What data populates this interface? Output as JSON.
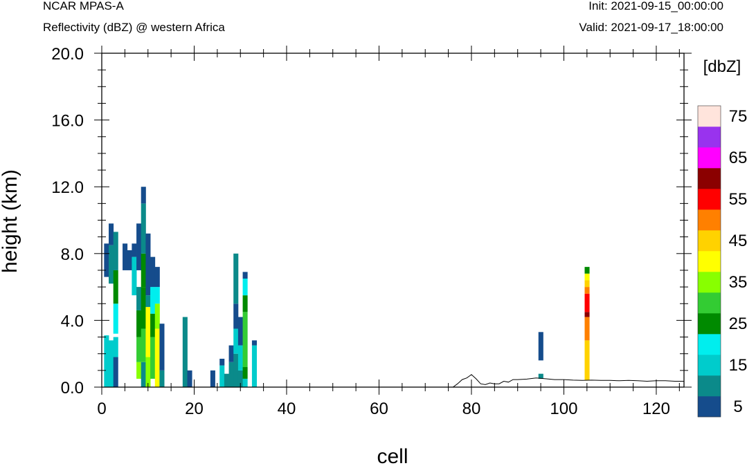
{
  "header": {
    "model": "NCAR MPAS-A",
    "subtitle": "Reflectivity (dBZ) @ western Africa",
    "init": "Init: 2021-09-15_00:00:00",
    "valid": "Valid: 2021-09-17_18:00:00"
  },
  "chart_data": {
    "type": "heatmap",
    "title": "Reflectivity (dBZ) @ western Africa",
    "xlabel": "cell",
    "ylabel": "height (km)",
    "xlim": [
      0,
      126
    ],
    "ylim": [
      0,
      20
    ],
    "x_ticks": [
      0,
      20,
      40,
      60,
      80,
      100,
      120
    ],
    "x_tick_labels": [
      "0",
      "20",
      "40",
      "60",
      "80",
      "100",
      "120"
    ],
    "y_ticks": [
      0,
      4,
      8,
      12,
      16,
      20
    ],
    "y_tick_labels": [
      "0.0",
      "4.0",
      "8.0",
      "12.0",
      "16.0",
      "20.0"
    ],
    "colorbar": {
      "unit_label": "[dbZ]",
      "levels": [
        5,
        10,
        15,
        20,
        25,
        30,
        35,
        40,
        45,
        50,
        55,
        60,
        65,
        70,
        75
      ],
      "labels": [
        "5",
        "15",
        "25",
        "35",
        "45",
        "55",
        "65",
        "75"
      ],
      "colors": [
        "#154c8c",
        "#0b8a8a",
        "#00cccc",
        "#00eeee",
        "#008a00",
        "#33cc33",
        "#88ff00",
        "#ffff00",
        "#ffd200",
        "#ff8000",
        "#ff0000",
        "#8b0000",
        "#ff00ff",
        "#9933ee",
        "#ffe4dc"
      ]
    },
    "columns": [
      {
        "x": 1,
        "segments": [
          [
            0,
            3.1,
            15
          ],
          [
            6.6,
            8.6,
            5
          ]
        ]
      },
      {
        "x": 2,
        "segments": [
          [
            0,
            2.8,
            15
          ],
          [
            6.2,
            8.5,
            10
          ],
          [
            8.5,
            9.8,
            5
          ]
        ]
      },
      {
        "x": 3,
        "segments": [
          [
            0,
            1.8,
            5
          ],
          [
            1.8,
            3,
            15
          ],
          [
            3.2,
            5,
            20
          ],
          [
            5,
            7,
            25
          ],
          [
            7,
            9.3,
            10
          ]
        ]
      },
      {
        "x": 5,
        "segments": [
          [
            7,
            8.6,
            5
          ]
        ]
      },
      {
        "x": 6,
        "segments": [
          [
            7,
            8.2,
            5
          ]
        ]
      },
      {
        "x": 7,
        "segments": [
          [
            5.5,
            7.8,
            15
          ],
          [
            7.8,
            8.6,
            5
          ]
        ]
      },
      {
        "x": 8,
        "segments": [
          [
            0.5,
            1.5,
            35
          ],
          [
            1.5,
            3,
            30
          ],
          [
            3,
            4.6,
            25
          ],
          [
            4.6,
            6,
            10
          ],
          [
            7,
            9.8,
            5
          ]
        ]
      },
      {
        "x": 9,
        "segments": [
          [
            0,
            1.5,
            10
          ],
          [
            1.5,
            3.5,
            30
          ],
          [
            3.5,
            6,
            25
          ],
          [
            6,
            8,
            25
          ],
          [
            8,
            11,
            10
          ],
          [
            11,
            12,
            5
          ]
        ]
      },
      {
        "x": 10,
        "segments": [
          [
            0,
            1.8,
            35
          ],
          [
            1.8,
            4.8,
            40
          ],
          [
            4.8,
            5.5,
            10
          ],
          [
            5.5,
            9.2,
            5
          ]
        ]
      },
      {
        "x": 11,
        "segments": [
          [
            0.5,
            3,
            30
          ],
          [
            3,
            4.4,
            25
          ],
          [
            4.4,
            6,
            20
          ],
          [
            6,
            7.8,
            5
          ]
        ]
      },
      {
        "x": 12,
        "segments": [
          [
            0,
            3.5,
            40
          ],
          [
            3.5,
            5,
            35
          ],
          [
            5,
            6,
            20
          ],
          [
            6,
            7.2,
            5
          ]
        ]
      },
      {
        "x": 13,
        "segments": [
          [
            0,
            1,
            10
          ],
          [
            1,
            3.8,
            5
          ]
        ]
      },
      {
        "x": 18,
        "segments": [
          [
            0,
            4.2,
            10
          ]
        ]
      },
      {
        "x": 19,
        "segments": [
          [
            0,
            1,
            5
          ]
        ]
      },
      {
        "x": 24,
        "segments": [
          [
            0,
            1,
            5
          ]
        ]
      },
      {
        "x": 26,
        "segments": [
          [
            0,
            1.3,
            15
          ],
          [
            1.3,
            1.7,
            5
          ]
        ]
      },
      {
        "x": 27,
        "segments": [
          [
            0,
            0.8,
            10
          ]
        ]
      },
      {
        "x": 28,
        "segments": [
          [
            0,
            1.5,
            10
          ],
          [
            1.5,
            2.5,
            5
          ]
        ]
      },
      {
        "x": 29,
        "segments": [
          [
            0,
            2,
            10
          ],
          [
            2,
            3.5,
            15
          ],
          [
            3.5,
            5,
            5
          ],
          [
            5,
            8,
            10
          ]
        ]
      },
      {
        "x": 30,
        "segments": [
          [
            0,
            1,
            10
          ],
          [
            1,
            2.5,
            15
          ],
          [
            2.5,
            4.2,
            5
          ]
        ]
      },
      {
        "x": 31,
        "segments": [
          [
            0,
            0.5,
            15
          ],
          [
            0.5,
            1.2,
            25
          ],
          [
            1.2,
            4.5,
            30
          ],
          [
            4.5,
            5.5,
            25
          ],
          [
            5.5,
            6.5,
            20
          ],
          [
            6.5,
            6.9,
            5
          ]
        ]
      },
      {
        "x": 33,
        "segments": [
          [
            0,
            2.5,
            15
          ],
          [
            2.5,
            2.8,
            5
          ]
        ]
      },
      {
        "x": 95,
        "segments": [
          [
            0.5,
            0.8,
            10
          ],
          [
            1.6,
            3.3,
            5
          ]
        ]
      },
      {
        "x": 105,
        "segments": [
          [
            0.4,
            2.8,
            45
          ],
          [
            2.8,
            4.2,
            50
          ],
          [
            4.2,
            4.5,
            60
          ],
          [
            4.5,
            5.6,
            55
          ],
          [
            5.6,
            6,
            50
          ],
          [
            6,
            6.4,
            45
          ],
          [
            6.4,
            6.8,
            40
          ],
          [
            6.8,
            7.2,
            25
          ]
        ]
      }
    ],
    "terrain": {
      "x": [
        0,
        76,
        77,
        78,
        79,
        80,
        81,
        82,
        83,
        84,
        85,
        86,
        87,
        88,
        89,
        90,
        92,
        94,
        96,
        98,
        100,
        102,
        104,
        106,
        108,
        110,
        112,
        114,
        116,
        118,
        120,
        122,
        124,
        126
      ],
      "y": [
        0,
        0,
        0.2,
        0.45,
        0.55,
        0.75,
        0.5,
        0.2,
        0.15,
        0.25,
        0.2,
        0.2,
        0.35,
        0.3,
        0.45,
        0.45,
        0.48,
        0.55,
        0.5,
        0.45,
        0.45,
        0.42,
        0.4,
        0.42,
        0.4,
        0.4,
        0.38,
        0.4,
        0.38,
        0.35,
        0.38,
        0.38,
        0.35,
        0.35
      ]
    }
  }
}
